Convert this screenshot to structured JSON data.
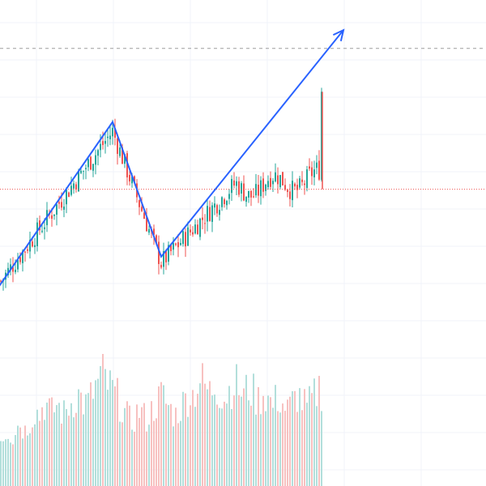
{
  "chart_data": {
    "type": "candlestick",
    "title": "",
    "xlabel": "",
    "ylabel": "",
    "grid": true,
    "legend": "none",
    "colors": {
      "up": "#26a69a",
      "down": "#ef5350",
      "up_volume": "#b2dfdb",
      "down_volume": "#f7c1c0",
      "drawing": "#2962ff",
      "grid": "#f0f3fa",
      "price_line": "#ef5350",
      "level_line": "#9e9e9e"
    },
    "price_range": [
      0,
      100
    ],
    "volume_range": [
      0,
      100
    ],
    "pivots": [
      {
        "bar": 0,
        "price": 14
      },
      {
        "bar": 46,
        "price": 63
      },
      {
        "bar": 66,
        "price": 20
      },
      {
        "bar": 139,
        "price": 82
      },
      {
        "bar": 141,
        "price": 81
      }
    ],
    "drawing_points": [
      {
        "bar": -1,
        "price": 12
      },
      {
        "bar": 46,
        "price": 66
      },
      {
        "bar": 66,
        "price": 22
      },
      {
        "bar": 141,
        "price": 96
      }
    ],
    "horizontal_level": 90,
    "last_price": 44,
    "bar_count": 133,
    "volume_profile": [
      38,
      40,
      42,
      44,
      41,
      39,
      45,
      48,
      50,
      46,
      44,
      47,
      52,
      55,
      60,
      58,
      56,
      62,
      65,
      63,
      60,
      58,
      61,
      64,
      62,
      59,
      57,
      60,
      63,
      66,
      68,
      70,
      72,
      69,
      66,
      64,
      67,
      70,
      74,
      78,
      82,
      85,
      88,
      84,
      80,
      78,
      76,
      72,
      70,
      66,
      62,
      58,
      55,
      52,
      50,
      54,
      57,
      60,
      58,
      55,
      53,
      56,
      59,
      62,
      65,
      68,
      72,
      70,
      66,
      63,
      60,
      58,
      56,
      59,
      62,
      65,
      68,
      71,
      74,
      72,
      76,
      80,
      84,
      82,
      79,
      76,
      74,
      77,
      80,
      78,
      75,
      72,
      70,
      73,
      76,
      79,
      82,
      80,
      77,
      74,
      72,
      75,
      78,
      76,
      73,
      70,
      68,
      71,
      74,
      72,
      69,
      66,
      64,
      67,
      70,
      68,
      65,
      62,
      60,
      63,
      66,
      69,
      72,
      70,
      67,
      64,
      62,
      65,
      68,
      71,
      74,
      78,
      76
    ]
  }
}
